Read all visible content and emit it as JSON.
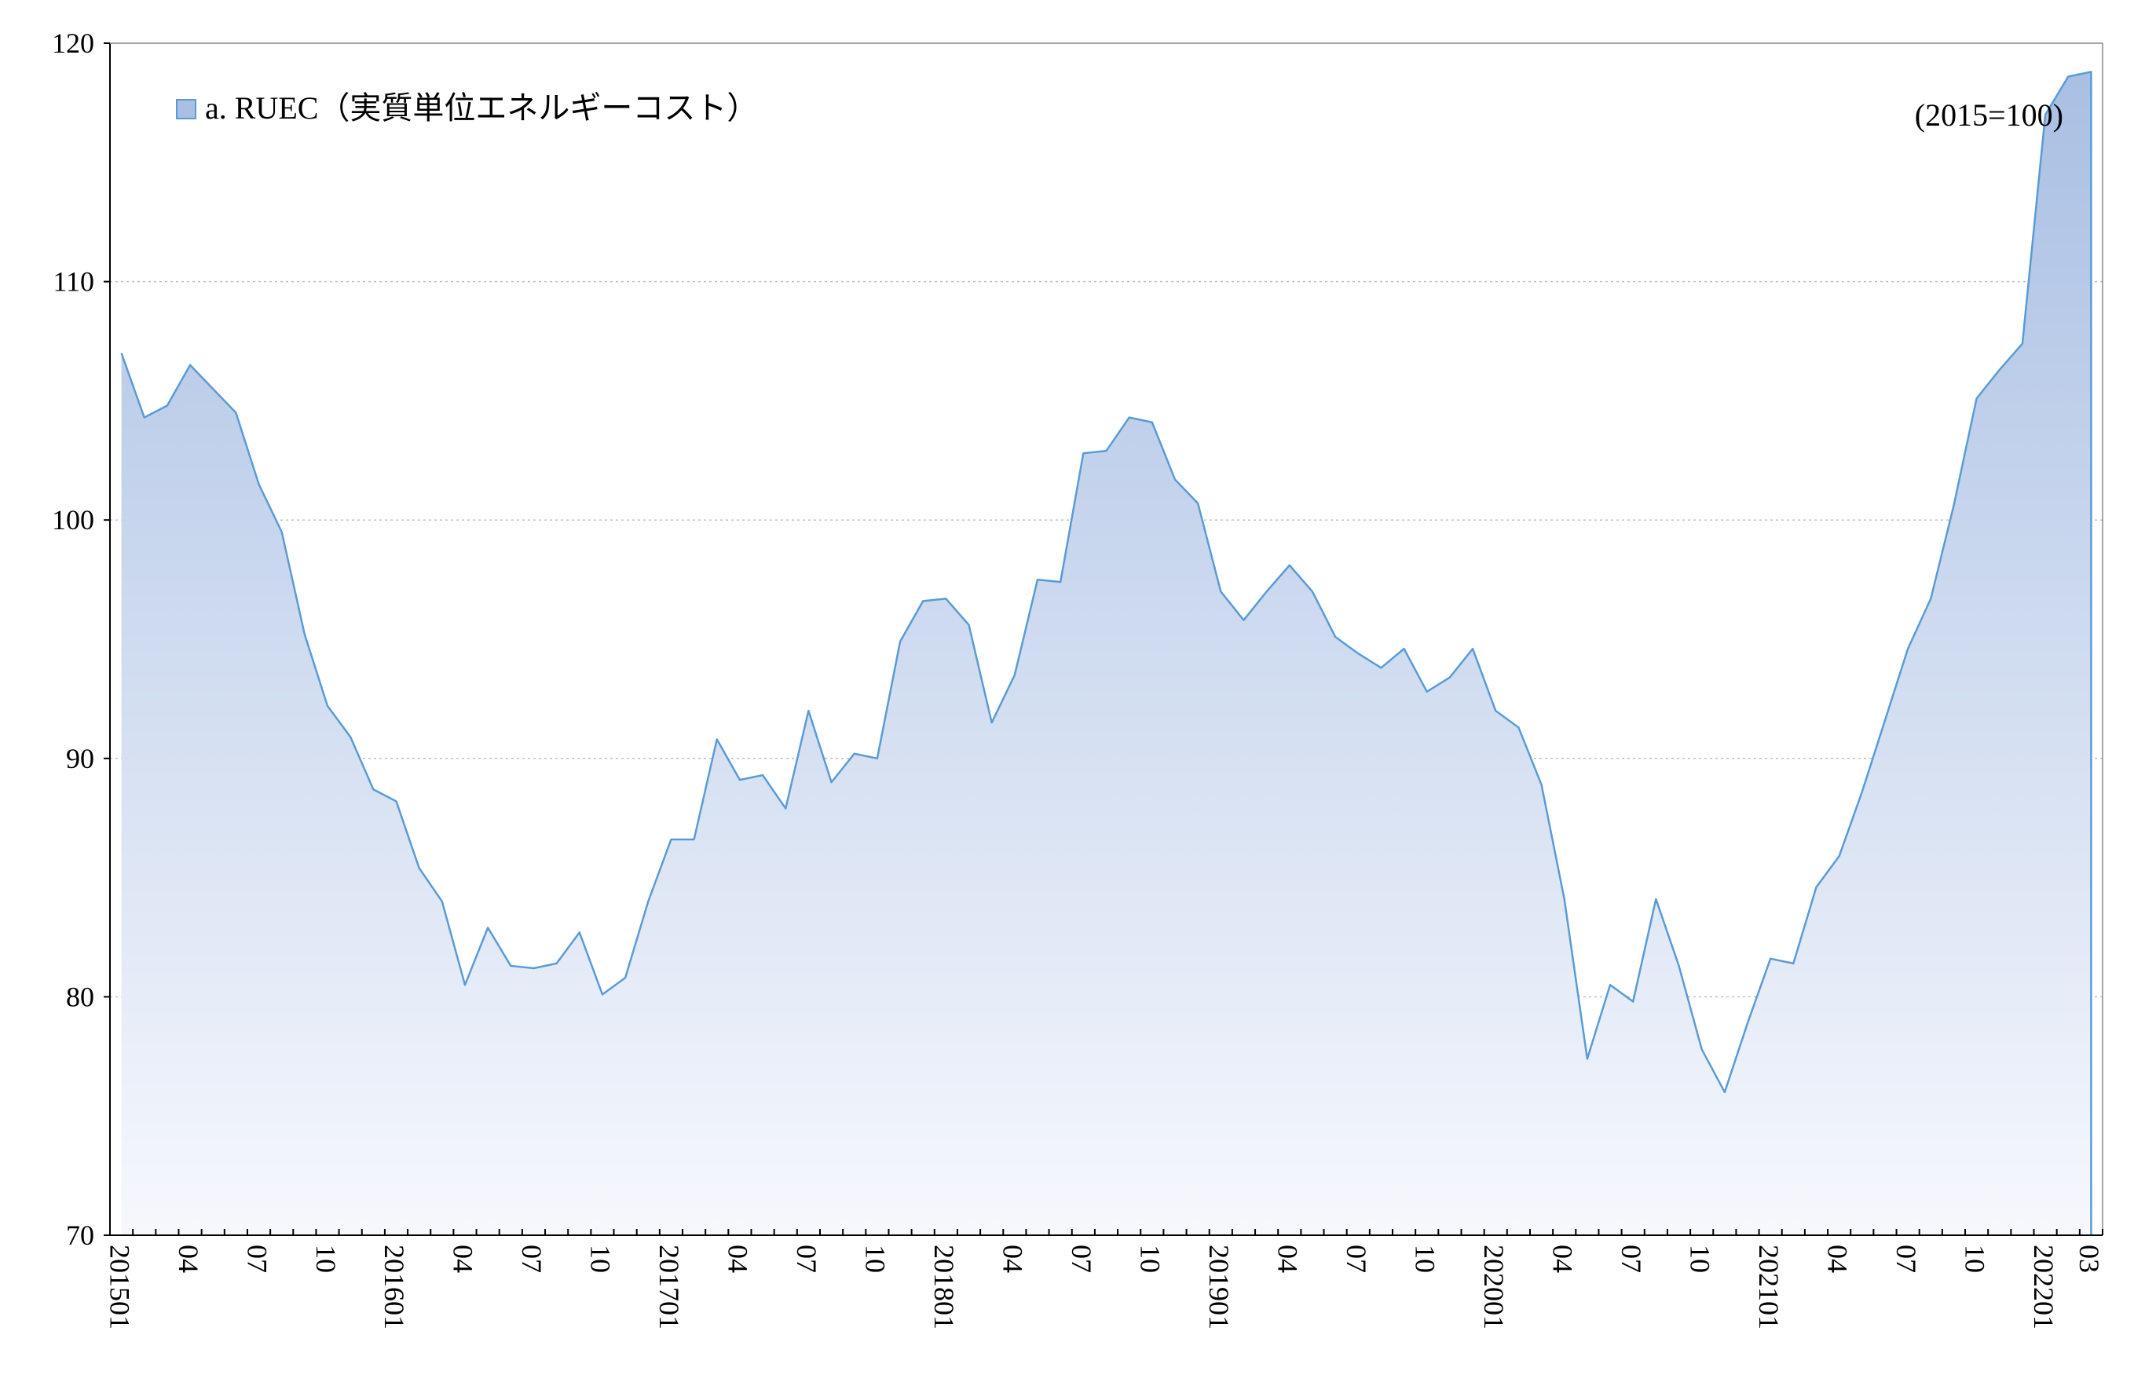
{
  "chart_data": {
    "type": "area",
    "unit_note": "(2015=100)",
    "legend": {
      "label": "a. RUEC（実質単位エネルギーコスト）",
      "placement": "top-left"
    },
    "series": [
      {
        "name": "a. RUEC（実質単位エネルギーコスト）",
        "values": [
          107.0,
          104.3,
          104.8,
          106.5,
          105.5,
          104.5,
          101.5,
          99.5,
          95.2,
          92.2,
          90.9,
          88.7,
          88.2,
          85.4,
          84.0,
          80.5,
          82.9,
          81.3,
          81.2,
          81.4,
          82.7,
          80.1,
          80.8,
          84.0,
          86.6,
          86.6,
          90.8,
          89.1,
          89.3,
          87.9,
          92.0,
          89.0,
          90.2,
          90.0,
          94.9,
          96.6,
          96.7,
          95.6,
          91.5,
          93.5,
          97.5,
          97.4,
          102.8,
          102.9,
          104.3,
          104.1,
          101.7,
          100.7,
          97.0,
          95.8,
          97.0,
          98.1,
          97.0,
          95.1,
          94.4,
          93.8,
          94.6,
          92.8,
          93.4,
          94.6,
          92.0,
          91.3,
          88.9,
          84.1,
          77.4,
          80.5,
          79.8,
          84.1,
          81.3,
          77.8,
          76.0,
          78.9,
          81.6,
          81.4,
          84.6,
          85.9,
          88.6,
          91.6,
          94.6,
          96.7,
          100.6,
          105.1,
          106.3,
          107.4,
          117.0,
          118.6,
          118.8
        ]
      }
    ],
    "x_start": "201501",
    "x_end": "202203",
    "xtick_labels": [
      "201501",
      "04",
      "07",
      "10",
      "201601",
      "04",
      "07",
      "10",
      "201701",
      "04",
      "07",
      "10",
      "201801",
      "04",
      "07",
      "10",
      "201901",
      "04",
      "07",
      "10",
      "202001",
      "04",
      "07",
      "10",
      "202101",
      "04",
      "07",
      "10",
      "202201",
      "03"
    ],
    "xtick_indices": [
      0,
      3,
      6,
      9,
      12,
      15,
      18,
      21,
      24,
      27,
      30,
      33,
      36,
      39,
      42,
      45,
      48,
      51,
      54,
      57,
      60,
      63,
      66,
      69,
      72,
      75,
      78,
      81,
      84,
      86
    ],
    "ylim": [
      70,
      120
    ],
    "yticks": [
      70,
      80,
      90,
      100,
      110,
      120
    ],
    "ytick_labels": [
      "70",
      "80",
      "90",
      "100",
      "110",
      "120"
    ],
    "grid": {
      "horizontal": true,
      "style": "dotted"
    },
    "colors": {
      "line": "#5b9bd5",
      "fill_top": "#a9bfe3",
      "fill_bottom": "#f6f8fd",
      "grid": "#bfbfbf",
      "axis": "#000000"
    }
  }
}
